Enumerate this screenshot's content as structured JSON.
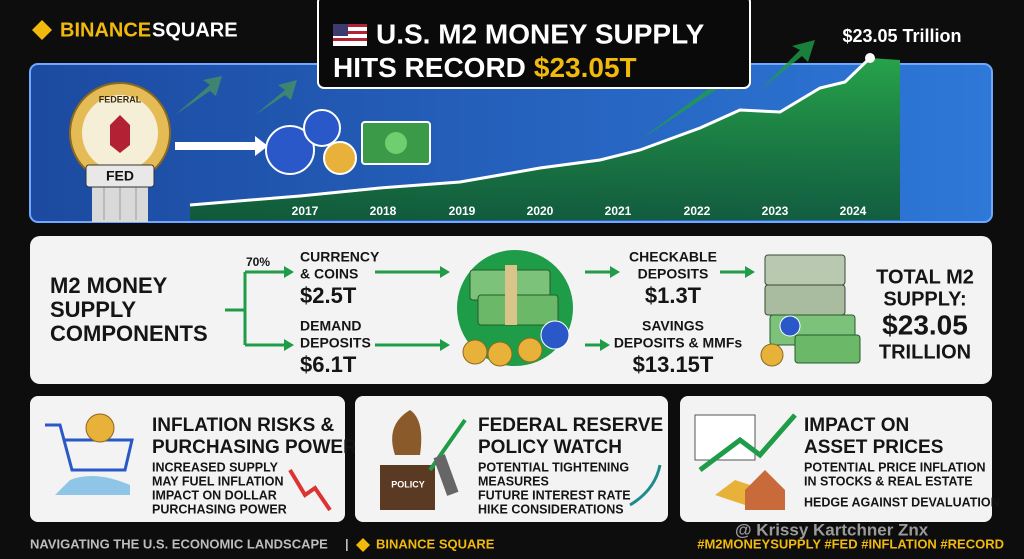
{
  "header": {
    "brand_a": "BINANCE",
    "brand_b": "SQUARE",
    "title_line1": "U.S. M2 MONEY SUPPLY",
    "title_line2": "HITS RECORD",
    "title_highlight": "$23.05T",
    "peak_label": "$23.05 Trillion"
  },
  "banner": {
    "seal_text": "FEDERAL",
    "pillar_label": "FED",
    "years": [
      "2017",
      "2018",
      "2019",
      "2020",
      "2021",
      "2022",
      "2023",
      "2024"
    ]
  },
  "components": {
    "title_lines": [
      "M2 MONEY",
      "SUPPLY",
      "COMPONENTS"
    ],
    "share": "70%",
    "items": [
      {
        "label_lines": [
          "CURRENCY",
          "& COINS"
        ],
        "value": "$2.5T"
      },
      {
        "label_lines": [
          "DEMAND",
          "DEPOSITS"
        ],
        "value": "$6.1T"
      },
      {
        "label_lines": [
          "CHECKABLE",
          "DEPOSITS"
        ],
        "value": "$1.3T"
      },
      {
        "label_lines": [
          "SAVINGS",
          "DEPOSITS & MMFs"
        ],
        "value": "$13.15T"
      }
    ],
    "total_lines": [
      "TOTAL M2",
      "SUPPLY:",
      "$23.05",
      "TRILLION"
    ]
  },
  "cards": [
    {
      "title_lines": [
        "INFLATION RISKS &",
        "PURCHASING POWER"
      ],
      "body_lines": [
        "INCREASED SUPPLY",
        "MAY FUEL INFLATION",
        "IMPACT ON DOLLAR",
        "PURCHASING POWER"
      ]
    },
    {
      "title_lines": [
        "FEDERAL RESERVE",
        "POLICY WATCH"
      ],
      "icon_label": "POLICY",
      "body_lines": [
        "POTENTIAL TIGHTENING",
        "MEASURES",
        "FUTURE INTEREST RATE",
        "HIKE CONSIDERATIONS"
      ]
    },
    {
      "title_lines": [
        "IMPACT ON",
        "ASSET PRICES"
      ],
      "body_lines": [
        "POTENTIAL PRICE INFLATION",
        "IN STOCKS & REAL ESTATE",
        "HEDGE AGAINST DEVALUATION"
      ]
    }
  ],
  "footer": {
    "tagline": "NAVIGATING THE U.S. ECONOMIC LANDSCAPE",
    "separator": "|",
    "brand": "BINANCE SQUARE",
    "watermark": "@ Krissy Kartchner Znx",
    "hashtags": "#M2MONEYSUPPLY #FED #INFLATION #RECORD"
  }
}
